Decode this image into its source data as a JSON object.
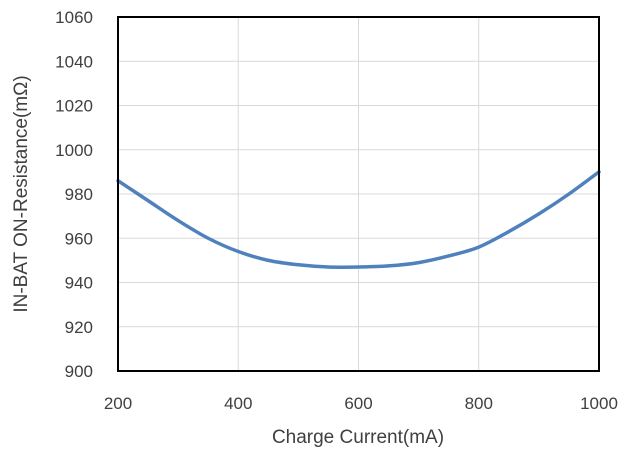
{
  "chart_data": {
    "type": "line",
    "title": "",
    "xlabel": "Charge Current(mA)",
    "ylabel": "IN-BAT ON-Resistance(mΩ)",
    "xlim": [
      200,
      1000
    ],
    "ylim": [
      900,
      1060
    ],
    "x_ticks": [
      "200",
      "400",
      "600",
      "800",
      "1000"
    ],
    "y_ticks": [
      "900",
      "920",
      "940",
      "960",
      "980",
      "1000",
      "1020",
      "1040",
      "1060"
    ],
    "grid": true,
    "legend": "none",
    "series": [
      {
        "color": "#4f81bd",
        "x": [
          200,
          250,
          300,
          350,
          400,
          450,
          500,
          550,
          600,
          650,
          700,
          750,
          800,
          850,
          900,
          950,
          1000
        ],
        "y": [
          986,
          977,
          968,
          960,
          954,
          950,
          948,
          947,
          947,
          947.5,
          949,
          952,
          956,
          963,
          971,
          980,
          990
        ]
      }
    ]
  }
}
